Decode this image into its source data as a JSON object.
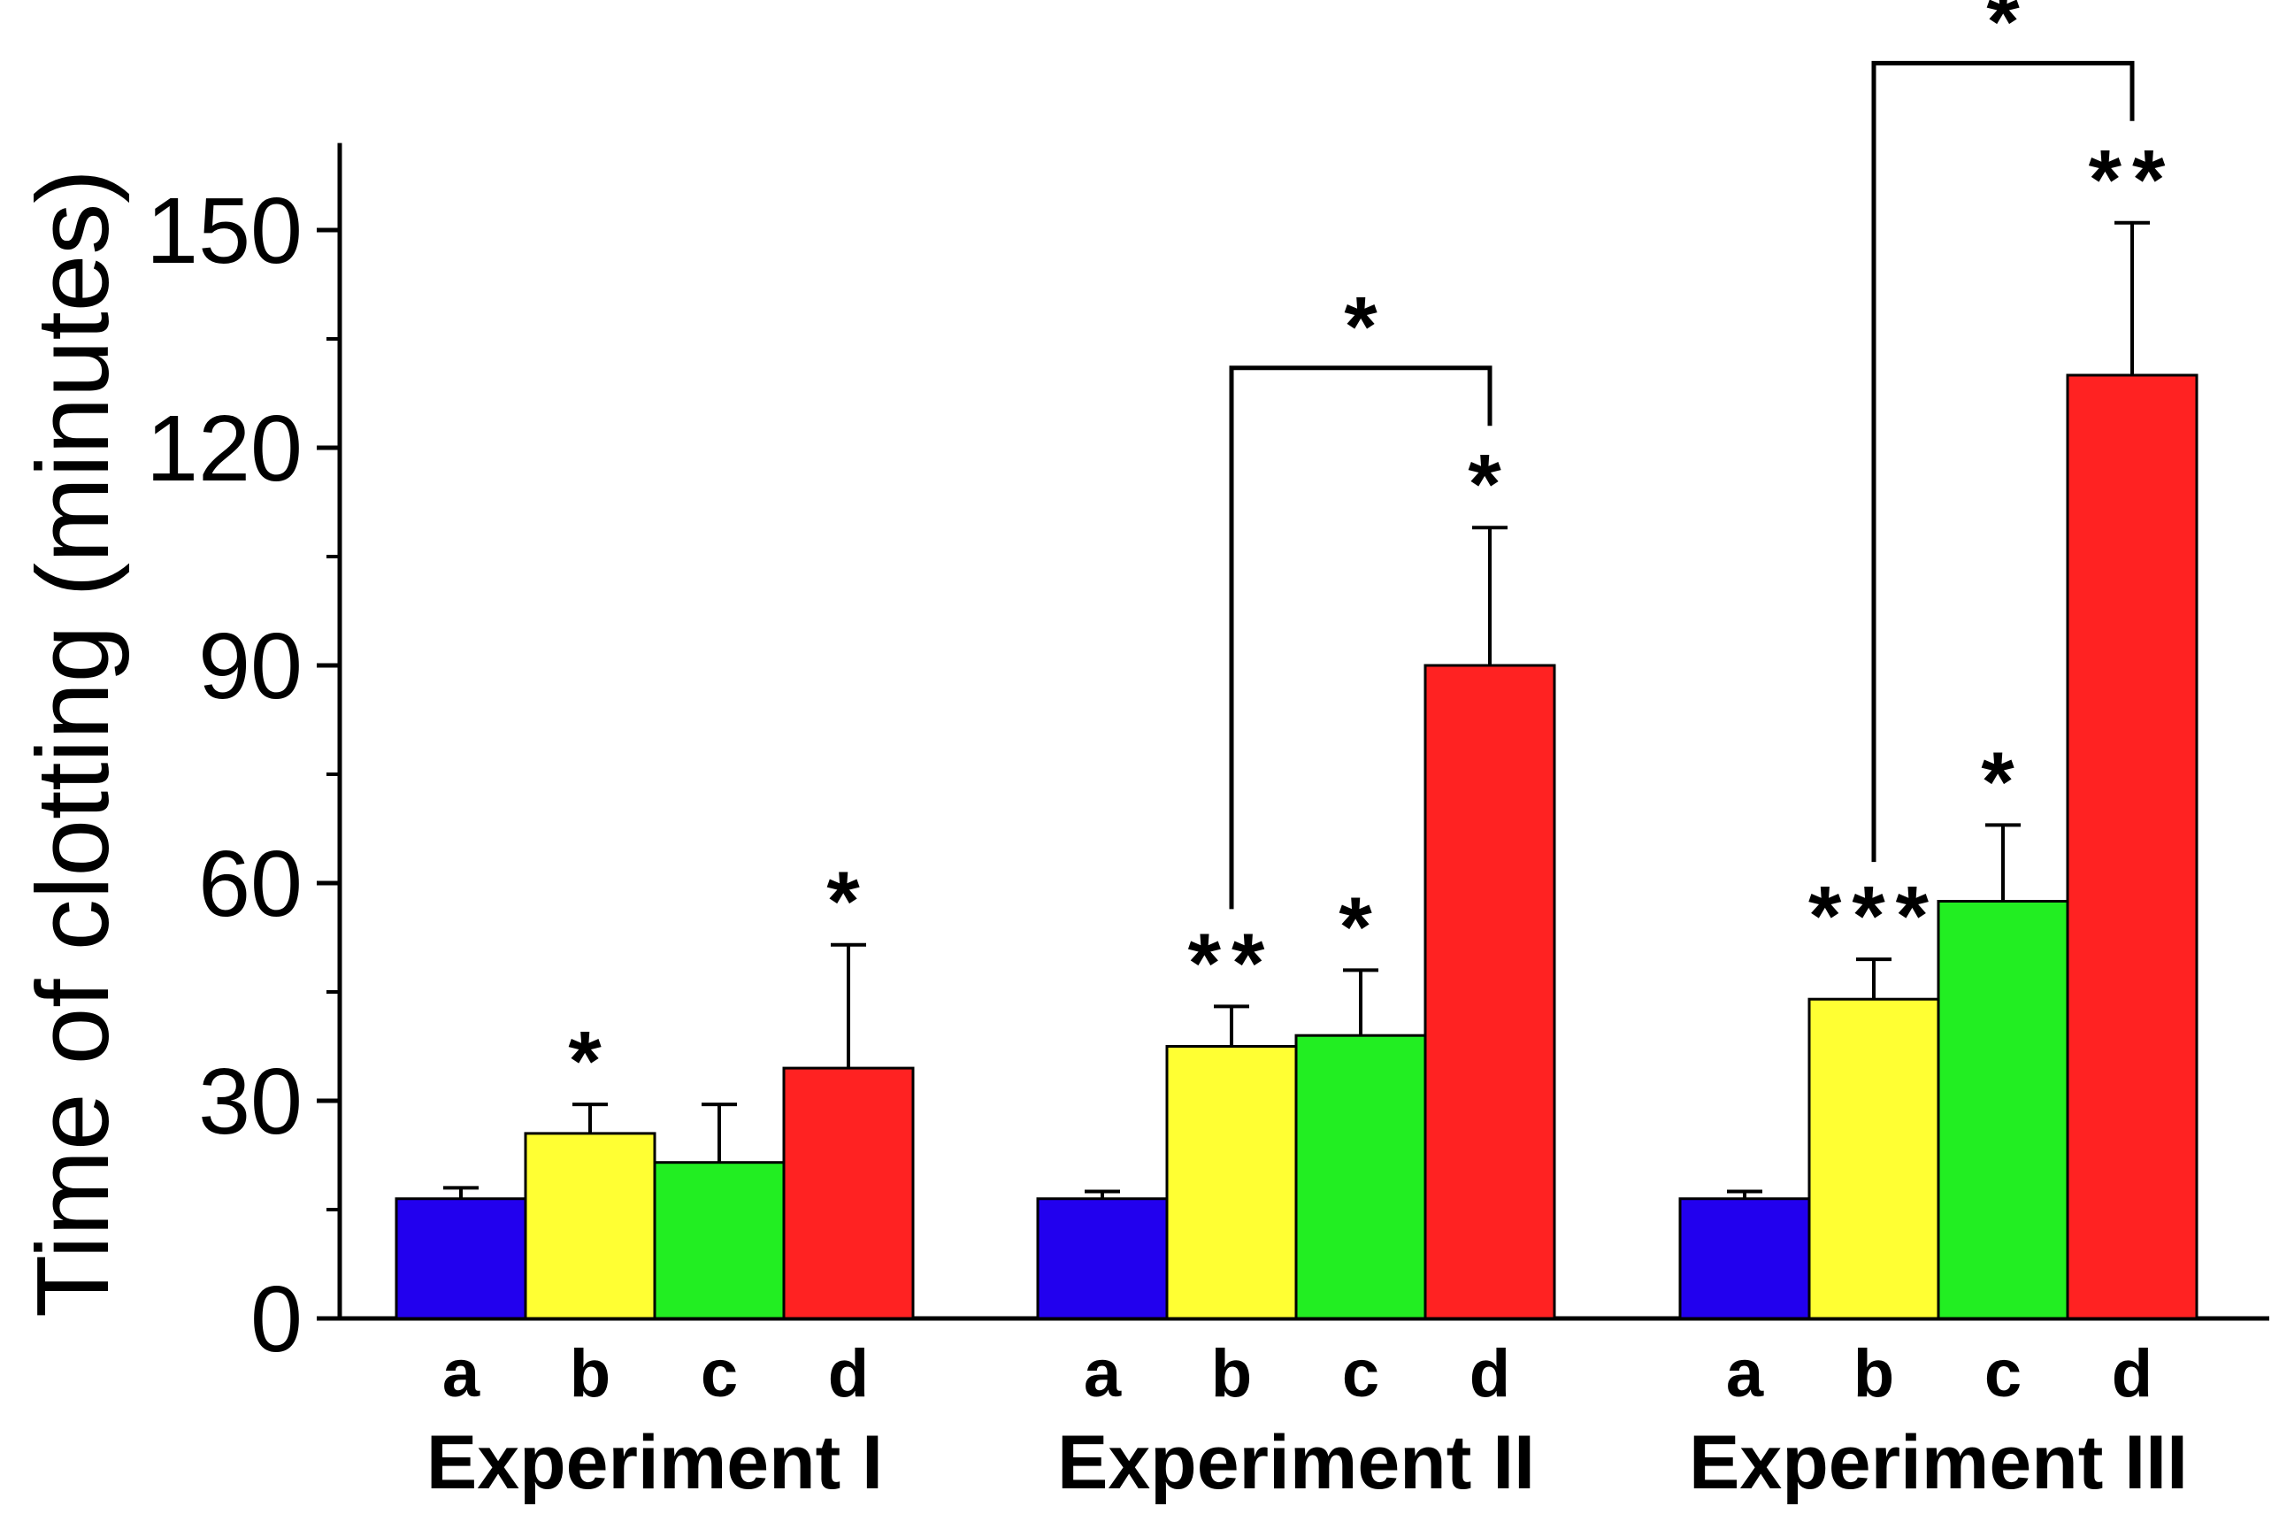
{
  "chart_data": {
    "type": "bar",
    "ylabel": "Time of clotting (minutes)",
    "xlabel": "",
    "ylim": [
      0,
      162
    ],
    "yticks": [
      0,
      30,
      60,
      90,
      120,
      150
    ],
    "ytick_labels": [
      "0",
      "30",
      "60",
      "90",
      "120",
      "150"
    ],
    "series_colors": {
      "a": "#2200ee",
      "b": "#ffff33",
      "c": "#22ee22",
      "d": "#ff2222"
    },
    "groups": [
      {
        "name": "Experiment I",
        "bars": [
          {
            "label": "a",
            "value": 16.5,
            "error": 1.5,
            "sig": ""
          },
          {
            "label": "b",
            "value": 25.5,
            "error": 4.0,
            "sig": "*"
          },
          {
            "label": "c",
            "value": 21.5,
            "error": 8.0,
            "sig": ""
          },
          {
            "label": "d",
            "value": 34.5,
            "error": 17.0,
            "sig": "*"
          }
        ]
      },
      {
        "name": "Experiment II",
        "bars": [
          {
            "label": "a",
            "value": 16.5,
            "error": 1.0,
            "sig": ""
          },
          {
            "label": "b",
            "value": 37.5,
            "error": 5.5,
            "sig": "**"
          },
          {
            "label": "c",
            "value": 39.0,
            "error": 9.0,
            "sig": "*"
          },
          {
            "label": "d",
            "value": 90.0,
            "error": 19.0,
            "sig": "*"
          }
        ],
        "bracket": {
          "from": "b",
          "to": "d",
          "sig": "*",
          "level": 131
        }
      },
      {
        "name": "Experiment III",
        "bars": [
          {
            "label": "a",
            "value": 16.5,
            "error": 1.0,
            "sig": ""
          },
          {
            "label": "b",
            "value": 44.0,
            "error": 5.5,
            "sig": "***"
          },
          {
            "label": "c",
            "value": 57.5,
            "error": 10.5,
            "sig": "*"
          },
          {
            "label": "d",
            "value": 130.0,
            "error": 21.0,
            "sig": "**"
          }
        ],
        "bracket": {
          "from": "b",
          "to": "d",
          "sig": "*",
          "level": 173
        }
      }
    ]
  }
}
